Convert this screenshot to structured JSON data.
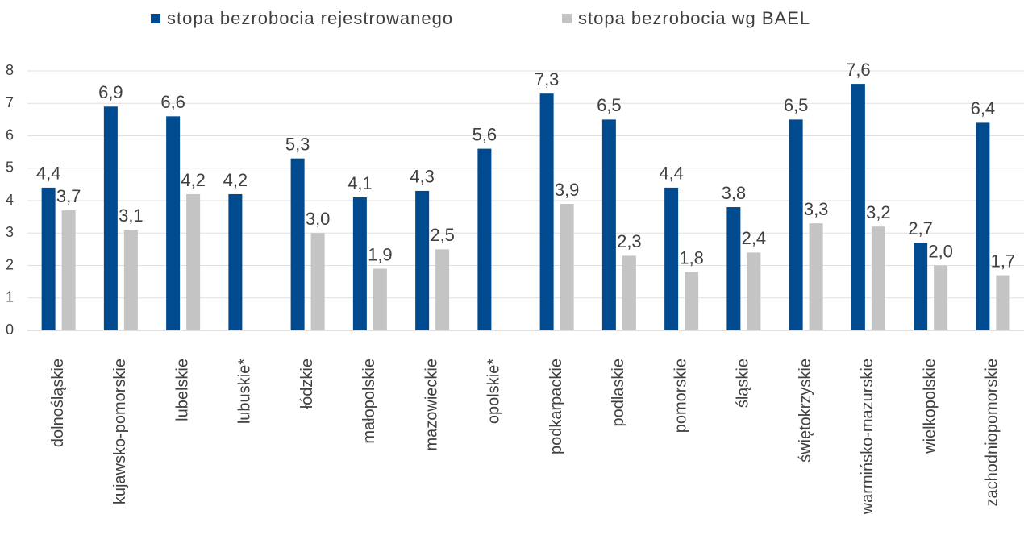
{
  "chart_data": {
    "type": "bar",
    "categories": [
      "dolnośląskie",
      "kujawsko-pomorskie",
      "lubelskie",
      "lubuskie*",
      "łódzkie",
      "małopolskie",
      "mazowieckie",
      "opolskie*",
      "podkarpackie",
      "podlaskie",
      "pomorskie",
      "śląskie",
      "świętokrzyskie",
      "warmińsko-mazurskie",
      "wielkopolskie",
      "zachodniopomorskie"
    ],
    "series": [
      {
        "name": "stopa bezrobocia rejestrowanego",
        "color": "#004a8f",
        "values": [
          4.4,
          6.9,
          6.6,
          4.2,
          5.3,
          4.1,
          4.3,
          5.6,
          7.3,
          6.5,
          4.4,
          3.8,
          6.5,
          7.6,
          2.7,
          6.4
        ],
        "value_labels": [
          "4,4",
          "6,9",
          "6,6",
          "4,2",
          "5,3",
          "4,1",
          "4,3",
          "5,6",
          "7,3",
          "6,5",
          "4,4",
          "3,8",
          "6,5",
          "7,6",
          "2,7",
          "6,4"
        ]
      },
      {
        "name": "stopa bezrobocia wg BAEL",
        "color": "#c4c4c4",
        "values": [
          3.7,
          3.1,
          4.2,
          null,
          3.0,
          1.9,
          2.5,
          null,
          3.9,
          2.3,
          1.8,
          2.4,
          3.3,
          3.2,
          2.0,
          1.7
        ],
        "value_labels": [
          "3,7",
          "3,1",
          "4,2",
          null,
          "3,0",
          "1,9",
          "2,5",
          null,
          "3,9",
          "2,3",
          "1,8",
          "2,4",
          "3,3",
          "3,2",
          "2,0",
          "1,7"
        ]
      }
    ],
    "ylim": [
      0,
      8
    ],
    "yticks": [
      0,
      1,
      2,
      3,
      4,
      5,
      6,
      7,
      8
    ],
    "grid": true,
    "legend": "top"
  }
}
